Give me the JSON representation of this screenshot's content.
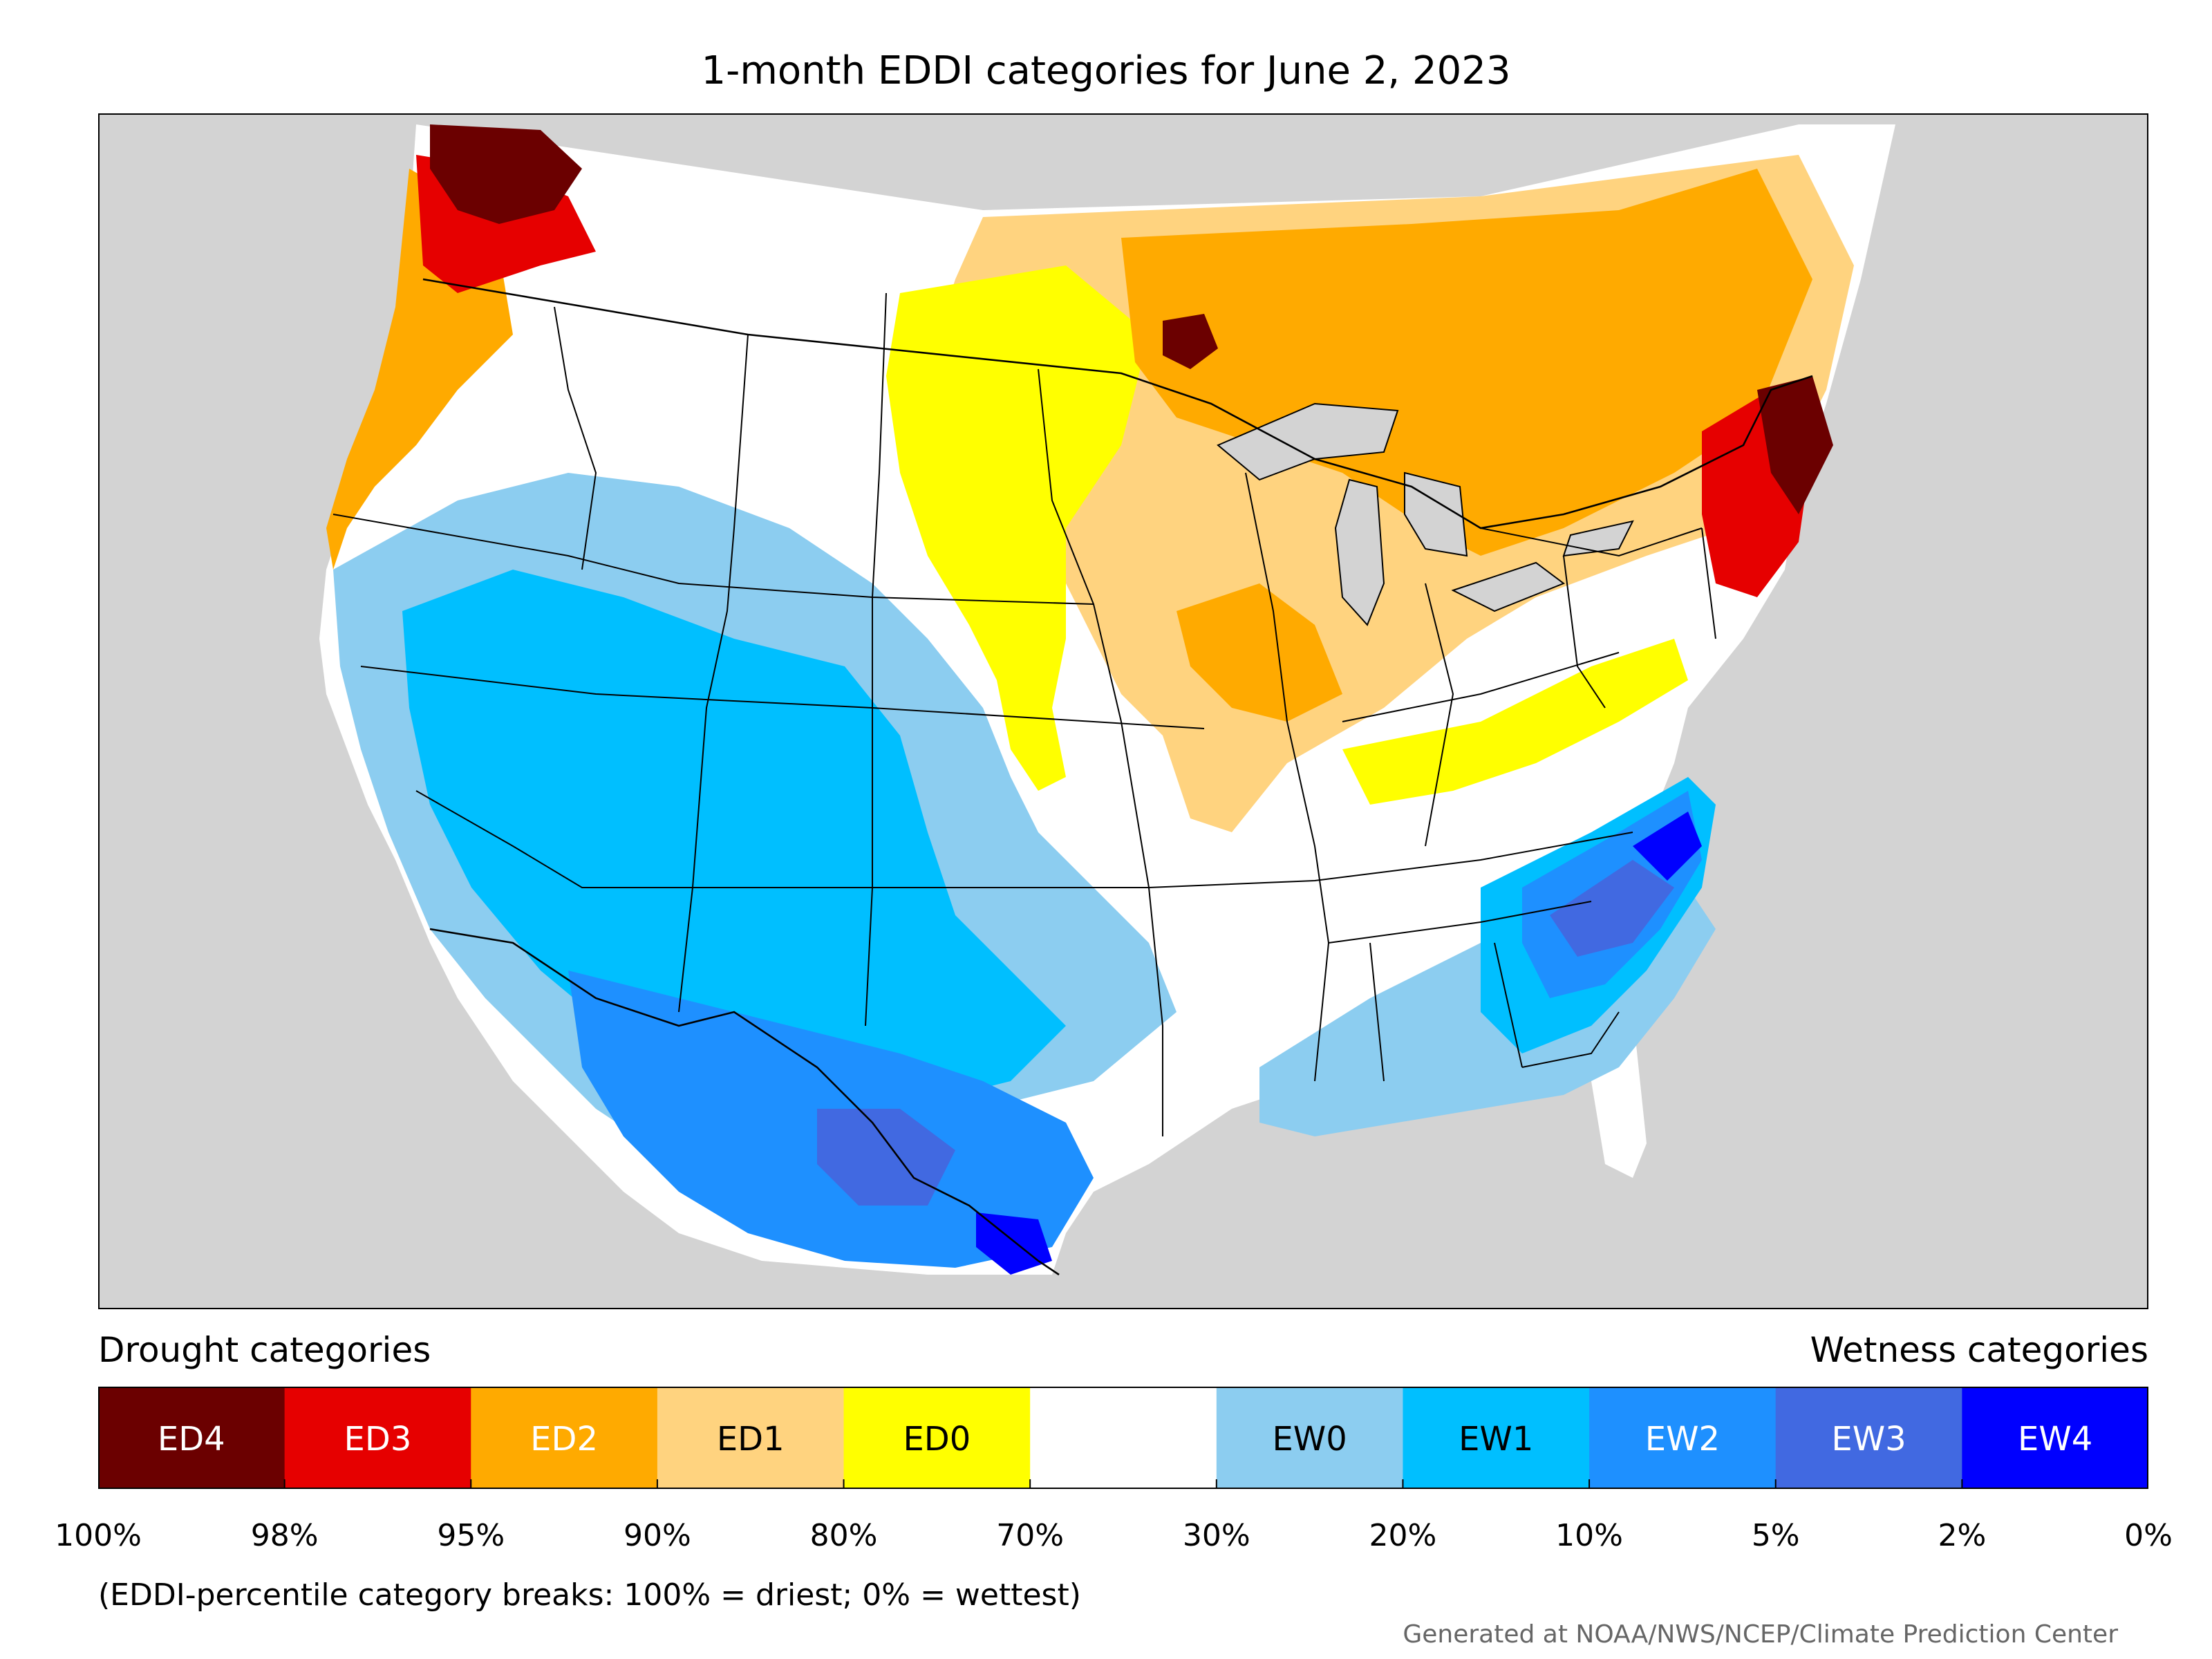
{
  "title": "1-month EDDI categories for June 2, 2023",
  "legend": {
    "drought_title": "Drought categories",
    "wetness_title": "Wetness categories",
    "categories": [
      {
        "label": "ED4",
        "color": "#6b0000",
        "text_color": "#ffffff"
      },
      {
        "label": "ED3",
        "color": "#e60000",
        "text_color": "#ffffff"
      },
      {
        "label": "ED2",
        "color": "#ffaa00",
        "text_color": "#ffffff"
      },
      {
        "label": "ED1",
        "color": "#ffd37f",
        "text_color": "#000000"
      },
      {
        "label": "ED0",
        "color": "#ffff00",
        "text_color": "#000000"
      },
      {
        "label": "",
        "color": "#ffffff",
        "text_color": "#000000"
      },
      {
        "label": "EW0",
        "color": "#8ccdf0",
        "text_color": "#000000"
      },
      {
        "label": "EW1",
        "color": "#00bfff",
        "text_color": "#000000"
      },
      {
        "label": "EW2",
        "color": "#1e90ff",
        "text_color": "#ffffff"
      },
      {
        "label": "EW3",
        "color": "#4169e1",
        "text_color": "#ffffff"
      },
      {
        "label": "EW4",
        "color": "#0000ff",
        "text_color": "#ffffff"
      }
    ],
    "tick_labels": [
      "100%",
      "98%",
      "95%",
      "90%",
      "80%",
      "70%",
      "30%",
      "20%",
      "10%",
      "5%",
      "2%",
      "0%"
    ]
  },
  "footnote": "(EDDI-percentile category breaks: 100% = driest; 0% = wettest)",
  "credit": "Generated at NOAA/NWS/NCEP/Climate Prediction Center",
  "map": {
    "background_color": "#d3d3d3",
    "water_color": "#d3d3d3",
    "border_color": "#000000"
  }
}
